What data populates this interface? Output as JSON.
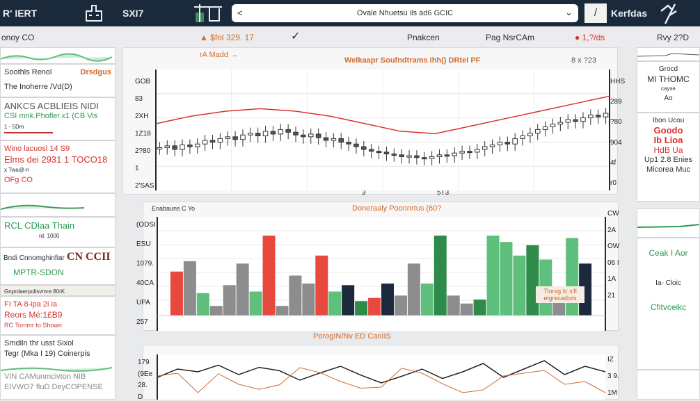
{
  "topbar": {
    "brand": "R' IERT",
    "label": "SXI7",
    "search_text": "Ovale Nhuetsu ils ad6 GCIC",
    "back": "<",
    "chevron": "⌄",
    "edit_icon": "/",
    "user": "Kerfdas"
  },
  "subbar": {
    "left": "onoy CO",
    "ticker": "▲ $fol 329. 17",
    "check": "✓",
    "tab1": "Pnakcen",
    "tab2": "Pag NsrCAm",
    "status": "● 1,?/ds",
    "right": "Rvy 2?D"
  },
  "left_cards": [
    {
      "title": "Soothls Renol",
      "tag": "Drsdgus",
      "sub": "The Inoherre /Vd(D)"
    },
    {
      "title": "ANKCS ACBLIEIS NIDI",
      "line": "CSI mnk.Phofler.x1 (CB Vis",
      "foot": "1 - 5Dm"
    },
    {
      "l1": "Wino lacuosl 14 S9",
      "l2": "Elms dei 2931 1 TOCO18",
      "l3": "x Twa@-n",
      "l4": "OFg CO"
    },
    {
      "title": "RCL CDlaa Thain",
      "sub": "rd. 1000"
    },
    {
      "title": "Bndi Cnnomghinfiar",
      "big": "CN CCII",
      "sub": "MPTR-SDON"
    },
    {
      "head": "Gnprdaerpolisvmre 80rK",
      "l1": "FI TA 8-ipa 2i ia",
      "l2": "Reors Mé:1£B9",
      "l3": "RC Tommr to Shown"
    },
    {
      "l1": "Smdiln thr usst Sixol",
      "l2": "Tegr (Mka I 19) Coinerpis",
      "l3": "VIN CAMunmcivton NIB",
      "l4": "EIVWO7 fluD DeyCOPENSE"
    }
  ],
  "right_cards": [
    {
      "l1": "Grocd",
      "l2": "MI THOMC",
      "l3": "cayse",
      "l4": "Ao"
    },
    {
      "l1": "Ibon Ucou",
      "l2": "Goodo",
      "l3": "Ib Lioa",
      "l4": "HdB Ua",
      "l5": "Up1 2.8 Enies",
      "l6": "Micorea Muc"
    },
    {
      "l1": "Ceak I Aor",
      "l2": "Ia- Cloic",
      "l3": "Cfitvceikc"
    }
  ],
  "main_chart": {
    "tag": "rA Madd →",
    "title": "Welkaapr Soufndtrams Ihh() DRtel PF",
    "corner": "8 x ?23",
    "y_left": [
      "GOB",
      "83",
      "2XH",
      "1Z18",
      "2?80",
      "1",
      "2'SAS"
    ],
    "y_right": [
      "HHS",
      "289",
      "?80",
      "904",
      "4f",
      "r0"
    ],
    "x_labels": [
      "3",
      "5T3"
    ],
    "colors": {
      "candle": "#333",
      "line": "#d8332c"
    },
    "closes": [
      32,
      34,
      30,
      35,
      33,
      36,
      40,
      38,
      42,
      44,
      41,
      46,
      48,
      45,
      50,
      47,
      52,
      49,
      46,
      44,
      47,
      43,
      40,
      42,
      38,
      36,
      33,
      30,
      28,
      27,
      25,
      24,
      22,
      23,
      21,
      20,
      22,
      24,
      23,
      26,
      28,
      27,
      30,
      33,
      35,
      38,
      36,
      42,
      45,
      48,
      52,
      55,
      58,
      60,
      63,
      61,
      65,
      68,
      66,
      70
    ],
    "trend": [
      20,
      26,
      30,
      32,
      30,
      26,
      20,
      14,
      12,
      18,
      24,
      30,
      36,
      42
    ]
  },
  "bar_chart": {
    "title_left": "Enabauns C Yo",
    "title": "Doneraaly Poonnrtus (60?",
    "y_left": [
      "(ODSI",
      "ESU",
      "1079.",
      "40CA",
      "UPA",
      "257"
    ],
    "y_right": [
      "CW",
      "2A",
      "OW",
      "06 I",
      "1A",
      "21"
    ],
    "note_l1": "Tlorvg Ic s'fl",
    "note_l2": "elgrecadors",
    "footer": "PorogIN/Nv ED CanIIS",
    "colors": {
      "red": "#e8493f",
      "gray": "#8d8d8f",
      "green": "#5ec07c",
      "dgreen": "#2e8b4a",
      "navy": "#1c2a3c"
    },
    "bars": [
      [
        "red",
        55
      ],
      [
        "gray",
        68
      ],
      [
        "green",
        28
      ],
      [
        "gray",
        12
      ],
      [
        "gray",
        38
      ],
      [
        "gray",
        65
      ],
      [
        "green",
        30
      ],
      [
        "red",
        100
      ],
      [
        "gray",
        12
      ],
      [
        "gray",
        50
      ],
      [
        "gray",
        40
      ],
      [
        "red",
        75
      ],
      [
        "green",
        30
      ],
      [
        "navy",
        38
      ],
      [
        "dgreen",
        18
      ],
      [
        "red",
        22
      ],
      [
        "navy",
        40
      ],
      [
        "gray",
        25
      ],
      [
        "gray",
        65
      ],
      [
        "green",
        40
      ],
      [
        "dgreen",
        100
      ],
      [
        "gray",
        25
      ],
      [
        "gray",
        15
      ],
      [
        "dgreen",
        20
      ],
      [
        "green",
        100
      ],
      [
        "green",
        92
      ],
      [
        "green",
        75
      ],
      [
        "dgreen",
        88
      ],
      [
        "green",
        70
      ],
      [
        "gray",
        18
      ],
      [
        "green",
        97
      ],
      [
        "navy",
        65
      ]
    ]
  },
  "bottom_chart": {
    "y_left": [
      "179",
      "(9Ee",
      "28.",
      "D"
    ],
    "y_right": [
      "IZ",
      "3 9.",
      "1M"
    ],
    "series": [
      40,
      55,
      50,
      62,
      45,
      58,
      52,
      35,
      48,
      60,
      44,
      30,
      42,
      55,
      38,
      50,
      65,
      40,
      55,
      70,
      45,
      60,
      50
    ]
  }
}
